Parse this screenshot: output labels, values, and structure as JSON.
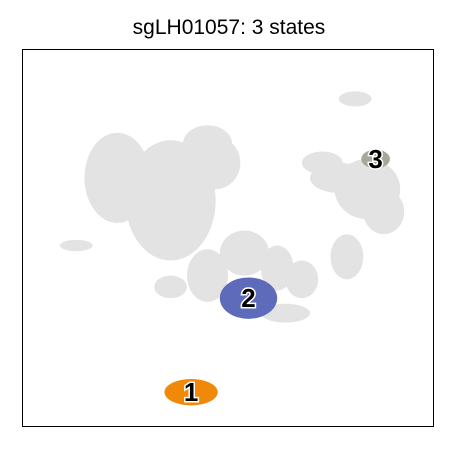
{
  "chart_data": {
    "type": "scatter",
    "title": "sgLH01057: 3 states",
    "xlabel": "",
    "ylabel": "",
    "grid": false,
    "legend": "none",
    "background_color": "#e3e3e3",
    "background_regions": [
      {
        "cx": 0.23,
        "cy": 0.66,
        "rx": 0.08,
        "ry": 0.12
      },
      {
        "cx": 0.36,
        "cy": 0.6,
        "rx": 0.11,
        "ry": 0.16
      },
      {
        "cx": 0.45,
        "cy": 0.75,
        "rx": 0.06,
        "ry": 0.05
      },
      {
        "cx": 0.47,
        "cy": 0.7,
        "rx": 0.06,
        "ry": 0.07
      },
      {
        "cx": 0.54,
        "cy": 0.46,
        "rx": 0.06,
        "ry": 0.06
      },
      {
        "cx": 0.45,
        "cy": 0.4,
        "rx": 0.05,
        "ry": 0.07
      },
      {
        "cx": 0.62,
        "cy": 0.42,
        "rx": 0.04,
        "ry": 0.06
      },
      {
        "cx": 0.68,
        "cy": 0.39,
        "rx": 0.04,
        "ry": 0.05
      },
      {
        "cx": 0.73,
        "cy": 0.7,
        "rx": 0.05,
        "ry": 0.03
      },
      {
        "cx": 0.77,
        "cy": 0.66,
        "rx": 0.07,
        "ry": 0.04
      },
      {
        "cx": 0.84,
        "cy": 0.63,
        "rx": 0.08,
        "ry": 0.08
      },
      {
        "cx": 0.88,
        "cy": 0.57,
        "rx": 0.05,
        "ry": 0.06
      },
      {
        "cx": 0.79,
        "cy": 0.45,
        "rx": 0.04,
        "ry": 0.06
      },
      {
        "cx": 0.81,
        "cy": 0.87,
        "rx": 0.04,
        "ry": 0.02
      },
      {
        "cx": 0.13,
        "cy": 0.48,
        "rx": 0.04,
        "ry": 0.015
      },
      {
        "cx": 0.36,
        "cy": 0.37,
        "rx": 0.04,
        "ry": 0.03
      },
      {
        "cx": 0.64,
        "cy": 0.3,
        "rx": 0.06,
        "ry": 0.025
      }
    ],
    "series": [
      {
        "label": "1",
        "color": "#f0890a",
        "cx": 0.41,
        "cy": 0.09,
        "rx": 0.065,
        "ry": 0.035
      },
      {
        "label": "2",
        "color": "#5d6bba",
        "cx": 0.55,
        "cy": 0.34,
        "rx": 0.07,
        "ry": 0.055
      },
      {
        "label": "3",
        "color": "#a6a99a",
        "cx": 0.86,
        "cy": 0.71,
        "rx": 0.035,
        "ry": 0.025
      }
    ]
  }
}
